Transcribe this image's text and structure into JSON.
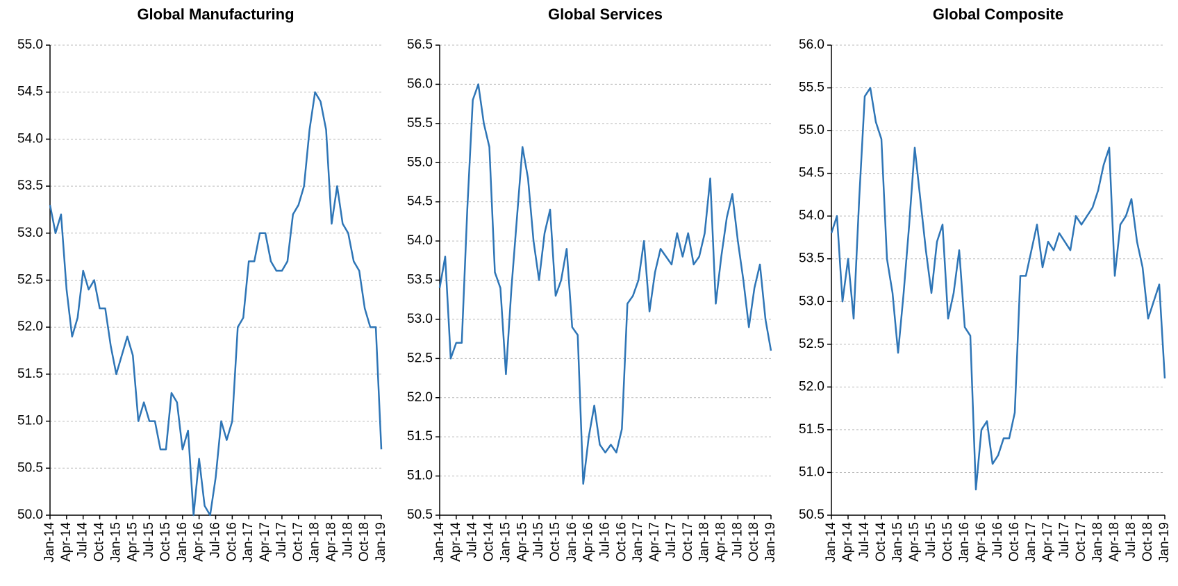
{
  "chart_data": [
    {
      "type": "line",
      "title": "Global Manufacturing",
      "categories": [
        "Jan-14",
        null,
        null,
        "Apr-14",
        null,
        null,
        "Jul-14",
        null,
        null,
        "Oct-14",
        null,
        null,
        "Jan-15",
        null,
        null,
        "Apr-15",
        null,
        null,
        "Jul-15",
        null,
        null,
        "Oct-15",
        null,
        null,
        "Jan-16",
        null,
        null,
        "Apr-16",
        null,
        null,
        "Jul-16",
        null,
        null,
        "Oct-16",
        null,
        null,
        "Jan-17",
        null,
        null,
        "Apr-17",
        null,
        null,
        "Jul-17",
        null,
        null,
        "Oct-17",
        null,
        null,
        "Jan-18",
        null,
        null,
        "Apr-18",
        null,
        null,
        "Jul-18",
        null,
        null,
        "Oct-18",
        null,
        null,
        "Jan-19"
      ],
      "series": [
        {
          "color": "#2e75b6",
          "values": [
            53.3,
            53.0,
            53.2,
            52.4,
            51.9,
            52.1,
            52.6,
            52.4,
            52.5,
            52.2,
            52.2,
            51.8,
            51.5,
            51.7,
            51.9,
            51.7,
            51.0,
            51.2,
            51.0,
            51.0,
            50.7,
            50.7,
            51.3,
            51.2,
            50.7,
            50.9,
            50.0,
            50.6,
            50.1,
            50.0,
            50.4,
            51.0,
            50.8,
            51.0,
            52.0,
            52.1,
            52.7,
            52.7,
            53.0,
            53.0,
            52.7,
            52.6,
            52.6,
            52.7,
            53.2,
            53.3,
            53.5,
            54.1,
            54.5,
            54.4,
            54.1,
            53.1,
            53.5,
            53.1,
            53.0,
            52.7,
            52.6,
            52.2,
            52.0,
            52.0,
            50.7
          ]
        }
      ],
      "ylim": [
        50,
        55
      ],
      "yticks": [
        {
          "value": 50,
          "label": "50.0"
        },
        {
          "value": 50.5,
          "label": "50.5"
        },
        {
          "value": 51,
          "label": "51.0"
        },
        {
          "value": 51.5,
          "label": "51.5"
        },
        {
          "value": 52,
          "label": "52.0"
        },
        {
          "value": 52.5,
          "label": "52.5"
        },
        {
          "value": 53,
          "label": "53.0"
        },
        {
          "value": 53.5,
          "label": "53.5"
        },
        {
          "value": 54,
          "label": "54.0"
        },
        {
          "value": 54.5,
          "label": "54.5"
        },
        {
          "value": 55,
          "label": "55.0"
        }
      ],
      "grid": true
    },
    {
      "type": "line",
      "title": "Global Services",
      "categories": [
        "Jan-14",
        null,
        null,
        "Apr-14",
        null,
        null,
        "Jul-14",
        null,
        null,
        "Oct-14",
        null,
        null,
        "Jan-15",
        null,
        null,
        "Apr-15",
        null,
        null,
        "Jul-15",
        null,
        null,
        "Oct-15",
        null,
        null,
        "Jan-16",
        null,
        null,
        "Apr-16",
        null,
        null,
        "Jul-16",
        null,
        null,
        "Oct-16",
        null,
        null,
        "Jan-17",
        null,
        null,
        "Apr-17",
        null,
        null,
        "Jul-17",
        null,
        null,
        "Oct-17",
        null,
        null,
        "Jan-18",
        null,
        null,
        "Apr-18",
        null,
        null,
        "Jul-18",
        null,
        null,
        "Oct-18",
        null,
        null,
        "Jan-19"
      ],
      "series": [
        {
          "color": "#2e75b6",
          "values": [
            53.4,
            53.8,
            52.5,
            52.7,
            52.7,
            54.4,
            55.8,
            56.0,
            55.5,
            55.2,
            53.6,
            53.4,
            52.3,
            53.4,
            54.3,
            55.2,
            54.8,
            54.0,
            53.5,
            54.1,
            54.4,
            53.3,
            53.5,
            53.9,
            52.9,
            52.8,
            50.9,
            51.5,
            51.9,
            51.4,
            51.3,
            51.4,
            51.3,
            51.6,
            53.2,
            53.3,
            53.5,
            54.0,
            53.1,
            53.6,
            53.9,
            53.8,
            53.7,
            54.1,
            53.8,
            54.1,
            53.7,
            53.8,
            54.1,
            54.8,
            53.2,
            53.8,
            54.3,
            54.6,
            54.0,
            53.5,
            52.9,
            53.4,
            53.7,
            53.0,
            52.6
          ]
        }
      ],
      "ylim": [
        50.5,
        56.5
      ],
      "yticks": [
        {
          "value": 50.5,
          "label": "50.5"
        },
        {
          "value": 51,
          "label": "51.0"
        },
        {
          "value": 51.5,
          "label": "51.5"
        },
        {
          "value": 52,
          "label": "52.0"
        },
        {
          "value": 52.5,
          "label": "52.5"
        },
        {
          "value": 53,
          "label": "53.0"
        },
        {
          "value": 53.5,
          "label": "53.5"
        },
        {
          "value": 54,
          "label": "54.0"
        },
        {
          "value": 54.5,
          "label": "54.5"
        },
        {
          "value": 55,
          "label": "55.0"
        },
        {
          "value": 55.5,
          "label": "55.5"
        },
        {
          "value": 56,
          "label": "56.0"
        },
        {
          "value": 56.5,
          "label": "56.5"
        }
      ],
      "grid": true
    },
    {
      "type": "line",
      "title": "Global Composite",
      "categories": [
        "Jan-14",
        null,
        null,
        "Apr-14",
        null,
        null,
        "Jul-14",
        null,
        null,
        "Oct-14",
        null,
        null,
        "Jan-15",
        null,
        null,
        "Apr-15",
        null,
        null,
        "Jul-15",
        null,
        null,
        "Oct-15",
        null,
        null,
        "Jan-16",
        null,
        null,
        "Apr-16",
        null,
        null,
        "Jul-16",
        null,
        null,
        "Oct-16",
        null,
        null,
        "Jan-17",
        null,
        null,
        "Apr-17",
        null,
        null,
        "Jul-17",
        null,
        null,
        "Oct-17",
        null,
        null,
        "Jan-18",
        null,
        null,
        "Apr-18",
        null,
        null,
        "Jul-18",
        null,
        null,
        "Oct-18",
        null,
        null,
        "Jan-19"
      ],
      "series": [
        {
          "color": "#2e75b6",
          "values": [
            53.8,
            54.0,
            53.0,
            53.5,
            52.8,
            54.2,
            55.4,
            55.5,
            55.1,
            54.9,
            53.5,
            53.1,
            52.4,
            53.1,
            53.9,
            54.8,
            54.2,
            53.6,
            53.1,
            53.7,
            53.9,
            52.8,
            53.1,
            53.6,
            52.7,
            52.6,
            50.8,
            51.5,
            51.6,
            51.1,
            51.2,
            51.4,
            51.4,
            51.7,
            53.3,
            53.3,
            53.6,
            53.9,
            53.4,
            53.7,
            53.6,
            53.8,
            53.7,
            53.6,
            54.0,
            53.9,
            54.0,
            54.1,
            54.3,
            54.6,
            54.8,
            53.3,
            53.9,
            54.0,
            54.2,
            53.7,
            53.4,
            52.8,
            53.0,
            53.2,
            52.1
          ]
        }
      ],
      "ylim": [
        50.5,
        56
      ],
      "yticks": [
        {
          "value": 50.5,
          "label": "50.5"
        },
        {
          "value": 51,
          "label": "51.0"
        },
        {
          "value": 51.5,
          "label": "51.5"
        },
        {
          "value": 52,
          "label": "52.0"
        },
        {
          "value": 52.5,
          "label": "52.5"
        },
        {
          "value": 53,
          "label": "53.0"
        },
        {
          "value": 53.5,
          "label": "53.5"
        },
        {
          "value": 54,
          "label": "54.0"
        },
        {
          "value": 54.5,
          "label": "54.5"
        },
        {
          "value": 55,
          "label": "55.0"
        },
        {
          "value": 55.5,
          "label": "55.5"
        },
        {
          "value": 56,
          "label": "56.0"
        }
      ],
      "grid": true
    }
  ]
}
